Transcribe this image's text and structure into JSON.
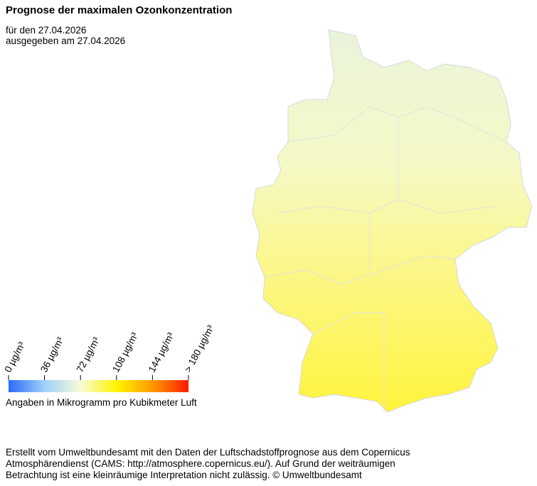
{
  "header": {
    "title": "Prognose der maximalen Ozonkonzentration",
    "lines": [
      "für den 27.04.2026",
      "ausgegeben am 27.04.2026"
    ]
  },
  "legend": {
    "ticks": [
      {
        "value": 0,
        "label": "0 µg/m³"
      },
      {
        "value": 36,
        "label": "36 µg/m³"
      },
      {
        "value": 72,
        "label": "72 µg/m³"
      },
      {
        "value": 108,
        "label": "108 µg/m³"
      },
      {
        "value": 144,
        "label": "144 µg/m³"
      },
      {
        "value": 180,
        "label": "> 180 µg/m³"
      }
    ],
    "colors": [
      "#2a6cf5",
      "#9fd0fb",
      "#f8fbd8",
      "#fff500",
      "#ff9a00",
      "#ff1a00"
    ],
    "note": "Angaben in Mikrogramm pro Kubikmeter Luft"
  },
  "footer": [
    "Erstellt vom Umweltbundesamt mit den Daten der Luftschadstoffprognose aus dem Copernicus",
    "Atmosphärendienst (CAMS: http://atmosphere.copernicus.eu/). Auf Grund der weiträumigen",
    "Betrachtung ist eine kleinräumige Interpretation nicht zulässig. © Umweltbundesamt"
  ]
}
